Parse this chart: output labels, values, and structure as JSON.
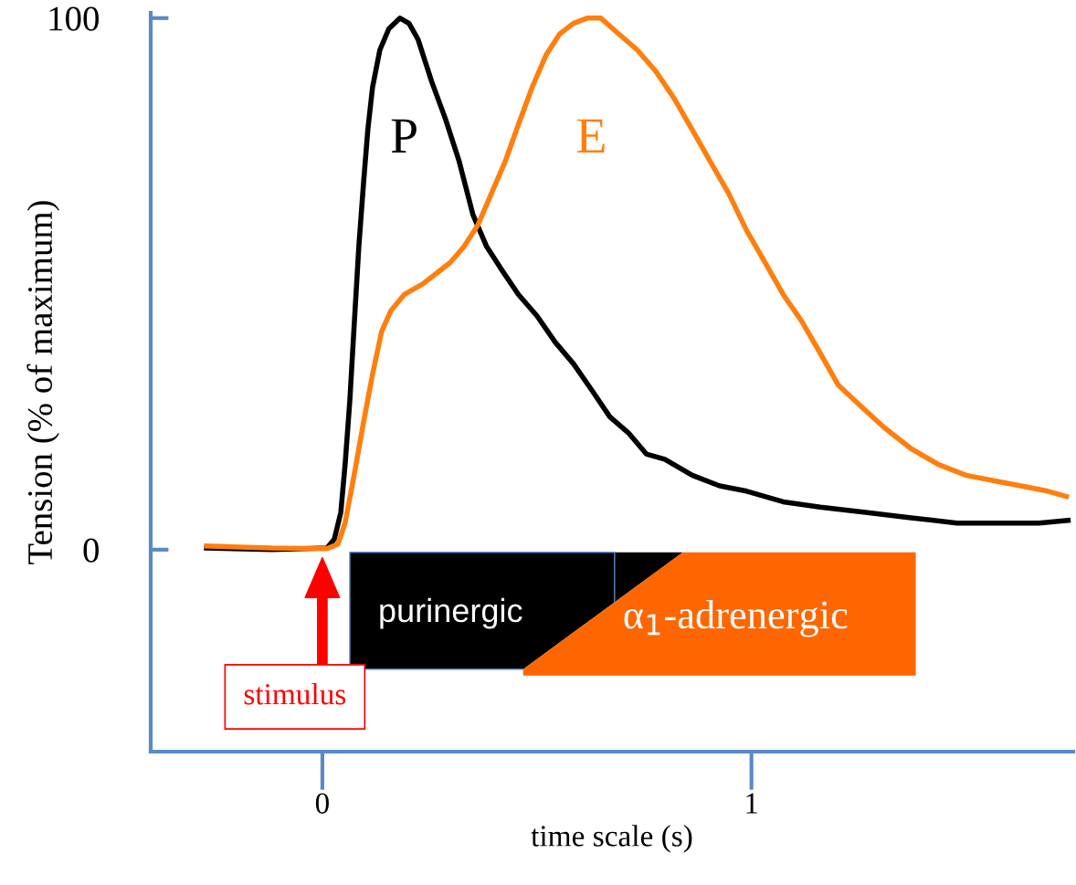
{
  "chart_data": {
    "type": "line",
    "xlabel": "time scale (s)",
    "ylabel": "Tension (% of maximum)",
    "xlim": [
      -0.4,
      1.75
    ],
    "ylim": [
      -38,
      101
    ],
    "xticks": [
      0,
      1
    ],
    "yticks": [
      0,
      100
    ],
    "series": [
      {
        "name": "P",
        "color": "#000000",
        "x": [
          -0.27,
          -0.117,
          0.011,
          0.028,
          0.043,
          0.053,
          0.064,
          0.074,
          0.085,
          0.096,
          0.106,
          0.117,
          0.134,
          0.155,
          0.181,
          0.202,
          0.223,
          0.255,
          0.287,
          0.319,
          0.351,
          0.383,
          0.415,
          0.457,
          0.5,
          0.543,
          0.585,
          0.628,
          0.67,
          0.713,
          0.755,
          0.798,
          0.862,
          0.926,
          0.989,
          1.074,
          1.16,
          1.266,
          1.372,
          1.479,
          1.585,
          1.67,
          1.738
        ],
        "values": [
          0.3,
          0,
          0.3,
          2,
          7,
          16,
          28,
          42,
          57,
          69,
          79,
          87,
          94,
          98,
          100,
          99,
          96,
          88,
          81,
          73,
          63,
          57,
          53,
          48,
          44,
          39,
          35,
          30,
          25,
          22,
          18,
          17,
          14,
          12,
          11,
          9,
          8,
          7,
          6,
          5,
          5,
          5,
          5.5
        ]
      },
      {
        "name": "E",
        "color": "#ff7f0e",
        "x": [
          -0.27,
          -0.117,
          0.011,
          0.036,
          0.053,
          0.074,
          0.096,
          0.117,
          0.138,
          0.16,
          0.191,
          0.234,
          0.266,
          0.298,
          0.33,
          0.362,
          0.394,
          0.426,
          0.457,
          0.489,
          0.521,
          0.553,
          0.585,
          0.617,
          0.649,
          0.691,
          0.734,
          0.777,
          0.819,
          0.862,
          0.904,
          0.947,
          0.989,
          1.032,
          1.074,
          1.117,
          1.16,
          1.202,
          1.255,
          1.309,
          1.372,
          1.436,
          1.5,
          1.564,
          1.628,
          1.691,
          1.734
        ],
        "values": [
          0.7,
          0.3,
          0.2,
          1,
          5,
          14,
          24,
          33,
          41,
          45,
          48,
          50,
          52,
          54,
          57,
          61,
          67,
          73,
          80,
          87,
          93,
          97,
          99,
          100,
          100,
          97,
          94,
          90,
          85,
          79,
          73,
          67,
          60,
          54,
          48,
          43,
          37,
          31,
          27,
          23,
          19,
          16,
          14,
          13,
          12,
          11,
          10
        ]
      }
    ],
    "annotations": [
      "stimulus",
      "purinergic",
      "α$_{1}$-adrenergic"
    ],
    "grid": false,
    "legend": false,
    "marker": "none",
    "line_style": "solid"
  }
}
